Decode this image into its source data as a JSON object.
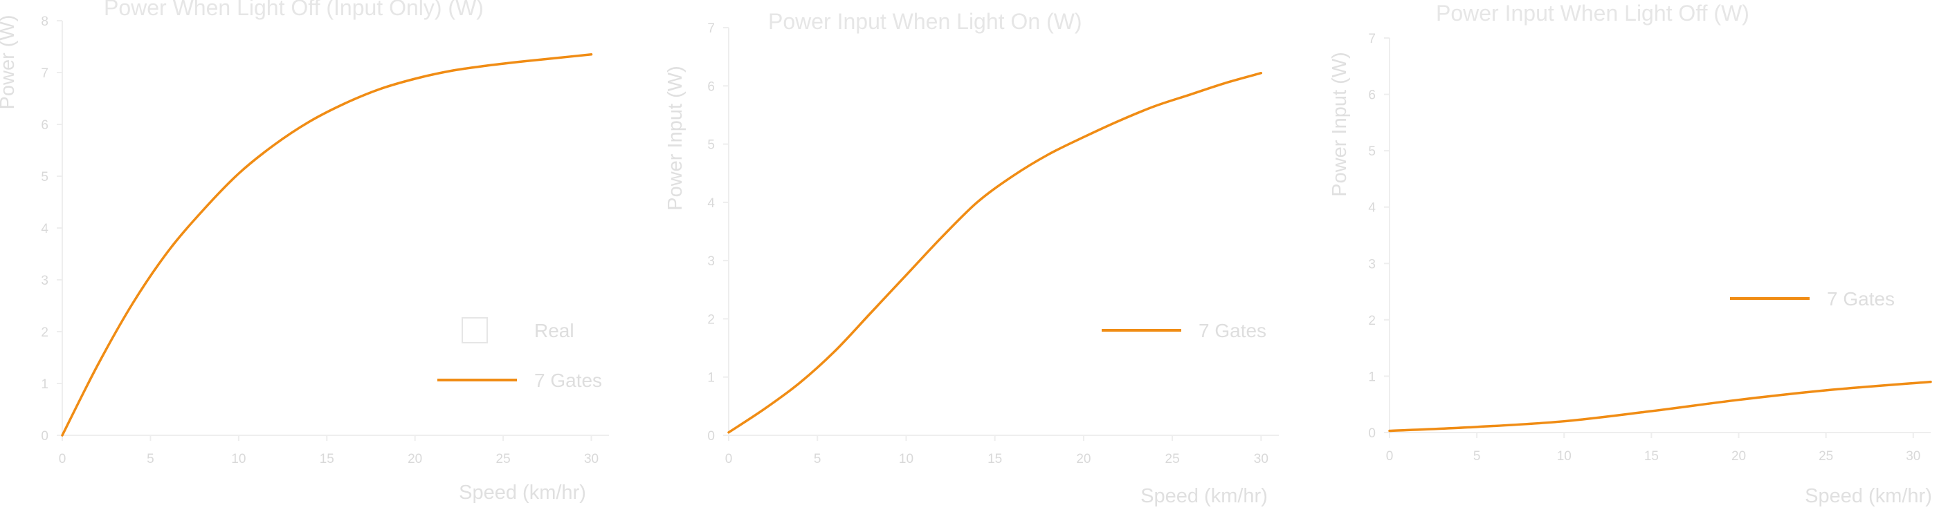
{
  "chart_data": [
    {
      "type": "line",
      "title": "Power When Light Off (Input Only) (W)",
      "xlabel": "Speed (km/hr)",
      "ylabel": "Power (W)",
      "xlim": [
        0,
        31
      ],
      "ylim": [
        0,
        8
      ],
      "xticks": [
        "0",
        "5",
        "10",
        "15",
        "20",
        "25",
        "30"
      ],
      "yticks": [
        "0",
        "1",
        "2",
        "3",
        "4",
        "5",
        "6",
        "7",
        "8"
      ],
      "legend_position": "bottom-right",
      "series": [
        {
          "name": "7 Gates",
          "color": "#f08c14",
          "legend_style": "line",
          "x": [
            0,
            2,
            4,
            6,
            8,
            10,
            12,
            14,
            16,
            18,
            20,
            22,
            24,
            26,
            28,
            30
          ],
          "y": [
            0,
            1.35,
            2.55,
            3.55,
            4.35,
            5.05,
            5.6,
            6.05,
            6.4,
            6.68,
            6.88,
            7.03,
            7.13,
            7.21,
            7.28,
            7.35
          ]
        },
        {
          "name": "Real",
          "color": "#e6e6e6",
          "legend_style": "box",
          "x": [],
          "y": []
        }
      ]
    },
    {
      "type": "line",
      "title": "Power Input When Light On (W)",
      "xlabel": "Speed (km/hr)",
      "ylabel": "Power Input (W)",
      "xlim": [
        0,
        31
      ],
      "ylim": [
        0,
        7
      ],
      "xticks": [
        "0",
        "5",
        "10",
        "15",
        "20",
        "25",
        "30"
      ],
      "yticks": [
        "0",
        "1",
        "2",
        "3",
        "4",
        "5",
        "6",
        "7"
      ],
      "legend_position": "center-right",
      "series": [
        {
          "name": "7 Gates",
          "color": "#f08c14",
          "legend_style": "line",
          "x": [
            0,
            2,
            4,
            6,
            8,
            10,
            12,
            14,
            16,
            18,
            20,
            22,
            24,
            26,
            28,
            30
          ],
          "y": [
            0.05,
            0.45,
            0.9,
            1.45,
            2.1,
            2.75,
            3.4,
            4.0,
            4.45,
            4.82,
            5.12,
            5.4,
            5.65,
            5.85,
            6.05,
            6.22
          ]
        }
      ]
    },
    {
      "type": "line",
      "title": "Power Input When Light Off (W)",
      "xlabel": "Speed (km/hr)",
      "ylabel": "Power Input (W)",
      "xlim": [
        0,
        31
      ],
      "ylim": [
        0,
        7
      ],
      "xticks": [
        "0",
        "5",
        "10",
        "15",
        "20",
        "25",
        "30"
      ],
      "yticks": [
        "0",
        "1",
        "2",
        "3",
        "4",
        "5",
        "6",
        "7"
      ],
      "legend_position": "center-right",
      "series": [
        {
          "name": "7 Gates",
          "color": "#f08c14",
          "legend_style": "line",
          "x": [
            0,
            5,
            10,
            15,
            20,
            25,
            31
          ],
          "y": [
            0.03,
            0.1,
            0.2,
            0.38,
            0.58,
            0.75,
            0.9
          ]
        }
      ]
    }
  ]
}
